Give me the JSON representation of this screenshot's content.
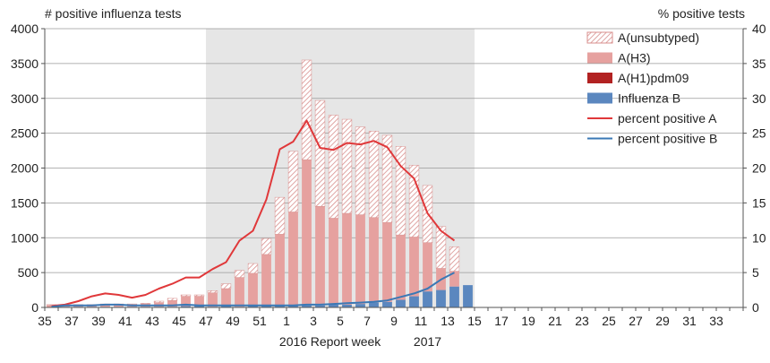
{
  "chart_data": {
    "type": "bar",
    "ylabel_left": "# positive influenza tests",
    "ylabel_right": "% positive tests",
    "xlabel": "Report  week",
    "year_labels": [
      {
        "text": "2016",
        "week": 1
      },
      {
        "text": "2017",
        "week": 11
      }
    ],
    "ylim_left": [
      0,
      4000
    ],
    "ylim_right": [
      0,
      40
    ],
    "yticks_left": [
      0,
      500,
      1000,
      1500,
      2000,
      2500,
      3000,
      3500,
      4000
    ],
    "yticks_right": [
      0,
      5,
      10,
      15,
      20,
      25,
      30,
      35,
      40
    ],
    "grid": true,
    "legend_position": "top-right",
    "shaded_season": {
      "from_week": 47,
      "to_week": 14
    },
    "x_weeks": [
      35,
      36,
      37,
      38,
      39,
      40,
      41,
      42,
      43,
      44,
      45,
      46,
      47,
      48,
      49,
      50,
      51,
      52,
      1,
      2,
      3,
      4,
      5,
      6,
      7,
      8,
      9,
      10,
      11,
      12,
      13,
      14,
      15,
      16,
      17,
      18,
      19,
      20,
      21,
      22,
      23,
      24,
      25,
      26,
      27,
      28,
      29,
      30,
      31,
      32,
      33,
      34
    ],
    "x_tick_labels": [
      "35",
      "37",
      "39",
      "41",
      "43",
      "45",
      "47",
      "49",
      "51",
      "1",
      "3",
      "5",
      "7",
      "9",
      "11",
      "13",
      "15",
      "17",
      "19",
      "21",
      "23",
      "25",
      "27",
      "29",
      "31",
      "33"
    ],
    "series": [
      {
        "name": "A(unsubtyped)",
        "kind": "bar",
        "color": "#d99594",
        "pattern": "hatch",
        "values": [
          10,
          10,
          10,
          10,
          10,
          10,
          10,
          10,
          20,
          30,
          20,
          20,
          30,
          70,
          100,
          140,
          230,
          530,
          870,
          1430,
          1520,
          1480,
          1350,
          1260,
          1240,
          1250,
          1270,
          1030,
          820,
          600,
          350,
          0,
          0,
          0,
          0,
          0,
          0,
          0,
          0,
          0,
          0,
          0,
          0,
          0,
          0,
          0,
          0,
          0,
          0,
          0,
          0,
          0
        ]
      },
      {
        "name": "A(H3)",
        "kind": "bar",
        "color": "#e6a19f",
        "values": [
          30,
          10,
          20,
          20,
          30,
          30,
          30,
          40,
          60,
          90,
          140,
          140,
          200,
          250,
          420,
          470,
          740,
          1030,
          1350,
          2090,
          1420,
          1240,
          1310,
          1280,
          1220,
          1140,
          930,
          850,
          700,
          310,
          220,
          0,
          0,
          0,
          0,
          0,
          0,
          0,
          0,
          0,
          0,
          0,
          0,
          0,
          0,
          0,
          0,
          0,
          0,
          0,
          0,
          0
        ]
      },
      {
        "name": "A(H1)pdm09",
        "kind": "bar",
        "color": "#b22222",
        "values": [
          0,
          0,
          0,
          0,
          0,
          0,
          0,
          0,
          0,
          0,
          0,
          0,
          0,
          0,
          0,
          0,
          0,
          0,
          0,
          0,
          0,
          0,
          0,
          0,
          0,
          0,
          0,
          0,
          0,
          0,
          0,
          0,
          0,
          0,
          0,
          0,
          0,
          0,
          0,
          0,
          0,
          0,
          0,
          0,
          0,
          0,
          0,
          0,
          0,
          0,
          0,
          0
        ]
      },
      {
        "name": "Influenza B",
        "kind": "bar",
        "color": "#5b87bf",
        "values": [
          0,
          10,
          10,
          10,
          10,
          10,
          10,
          10,
          10,
          10,
          20,
          20,
          10,
          20,
          10,
          20,
          20,
          20,
          20,
          30,
          30,
          40,
          40,
          50,
          70,
          80,
          110,
          160,
          230,
          250,
          300,
          320,
          0,
          0,
          0,
          0,
          0,
          0,
          0,
          0,
          0,
          0,
          0,
          0,
          0,
          0,
          0,
          0,
          0,
          0,
          0,
          0
        ]
      },
      {
        "name": "percent positive A",
        "kind": "line",
        "axis": "right",
        "color": "#e0383a",
        "values": [
          0.2,
          0.4,
          0.9,
          1.6,
          2.0,
          1.8,
          1.4,
          1.8,
          2.7,
          3.4,
          4.3,
          4.3,
          5.5,
          6.5,
          9.6,
          11.0,
          15.5,
          22.7,
          23.8,
          26.8,
          22.9,
          22.6,
          23.6,
          23.4,
          23.9,
          23.0,
          20.3,
          18.5,
          13.5,
          11.0,
          9.6,
          null,
          null,
          null,
          null,
          null,
          null,
          null,
          null,
          null,
          null,
          null,
          null,
          null,
          null,
          null,
          null,
          null,
          null,
          null,
          null,
          null
        ]
      },
      {
        "name": "percent positive B",
        "kind": "line",
        "axis": "right",
        "color": "#3a78b5",
        "values": [
          0.1,
          0.3,
          0.3,
          0.3,
          0.4,
          0.4,
          0.3,
          0.3,
          0.3,
          0.3,
          0.4,
          0.3,
          0.3,
          0.3,
          0.3,
          0.3,
          0.3,
          0.3,
          0.3,
          0.4,
          0.4,
          0.5,
          0.6,
          0.7,
          0.8,
          1.0,
          1.5,
          2.0,
          2.7,
          4.0,
          5.0,
          null,
          null,
          null,
          null,
          null,
          null,
          null,
          null,
          null,
          null,
          null,
          null,
          null,
          null,
          null,
          null,
          null,
          null,
          null,
          null,
          null
        ]
      }
    ]
  }
}
